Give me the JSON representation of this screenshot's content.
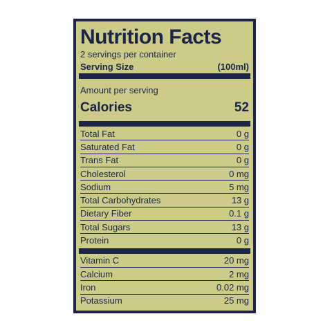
{
  "header": {
    "title": "Nutrition Facts",
    "servings": "2 servings per container",
    "serving_size_label": "Serving Size",
    "serving_size_value": "(100ml)"
  },
  "amount": {
    "label": "Amount per serving",
    "calories_label": "Calories",
    "calories_value": 52
  },
  "nutrients": [
    [
      "Total Fat",
      "0 g"
    ],
    [
      "Saturated Fat",
      "0 g"
    ],
    [
      "Trans Fat",
      "0 g"
    ],
    [
      "Cholesterol",
      "0 mg"
    ],
    [
      "Sodium",
      "5 mg"
    ],
    [
      "Total Carbohydrates",
      "13 g"
    ],
    [
      "Dietary Fiber",
      "0.1 g"
    ],
    [
      "Total Sugars",
      "13 g"
    ],
    [
      "Protein",
      "0 g"
    ]
  ],
  "minerals": [
    [
      "Vitamin C",
      "20 mg"
    ],
    [
      "Calcium",
      "2 mg"
    ],
    [
      "Iron",
      "0.02 mg"
    ],
    [
      "Potassium",
      "25 mg"
    ]
  ]
}
